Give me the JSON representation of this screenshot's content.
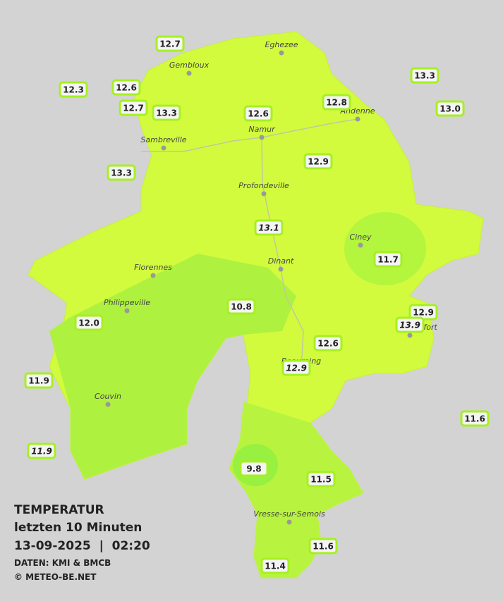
{
  "title": "TEMPERATUR",
  "subtitle": "letzten 10 Minuten",
  "datetime": "13-09-2025  |  02:20",
  "source": "DATEN: KMI & BMCB",
  "copyright": "© METEO-BE.NET",
  "cities": [
    {
      "label": "Eghezee"
    },
    {
      "label": "Gembloux"
    },
    {
      "label": "Andenne"
    },
    {
      "label": "Namur"
    },
    {
      "label": "Sambreville"
    },
    {
      "label": "Profondeville"
    },
    {
      "label": "Ciney"
    },
    {
      "label": "Dinant"
    },
    {
      "label": "Florennes"
    },
    {
      "label": "Philippeville"
    },
    {
      "label": "Rochefort"
    },
    {
      "label": "Beauraing"
    },
    {
      "label": "Couvin"
    },
    {
      "label": "Vresse-sur-Semois"
    }
  ],
  "stations": [
    {
      "label": "12.7"
    },
    {
      "label": "12.3"
    },
    {
      "label": "12.6"
    },
    {
      "label": "12.7"
    },
    {
      "label": "13.3"
    },
    {
      "label": "12.6"
    },
    {
      "label": "12.8"
    },
    {
      "label": "13.3"
    },
    {
      "label": "13.0"
    },
    {
      "label": "13.3"
    },
    {
      "label": "12.9"
    },
    {
      "label": "13.1",
      "italic": true
    },
    {
      "label": "11.7"
    },
    {
      "label": "10.8"
    },
    {
      "label": "12.0"
    },
    {
      "label": "12.9"
    },
    {
      "label": "13.9",
      "italic": true
    },
    {
      "label": "12.6"
    },
    {
      "label": "12.9",
      "italic": true
    },
    {
      "label": "11.9"
    },
    {
      "label": "11.6"
    },
    {
      "label": "11.9",
      "italic": true
    },
    {
      "label": "9.8"
    },
    {
      "label": "11.5"
    },
    {
      "label": "11.6"
    },
    {
      "label": "11.4"
    }
  ]
}
